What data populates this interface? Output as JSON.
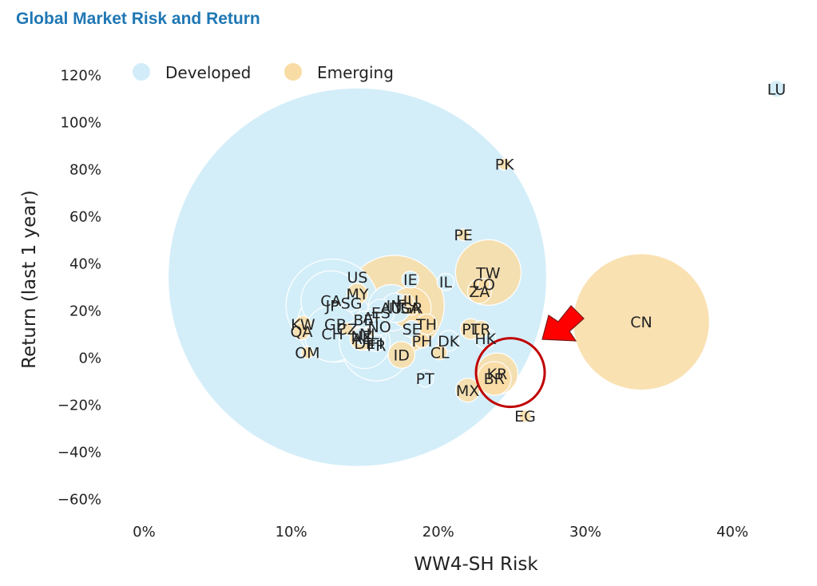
{
  "title": "Global Market Risk and Return",
  "colors": {
    "title": "#1f77b4",
    "developed": "#d2edf9",
    "emerging": "#f9dca4",
    "highlight": "#c00000",
    "arrow": "#ff0000"
  },
  "chart_data": {
    "type": "scatter",
    "title": "Global Market Risk and Return",
    "xlabel": "WW4-SH Risk",
    "ylabel": "Return (last 1 year)",
    "xlim": [
      -0.035,
      0.445
    ],
    "ylim": [
      -0.68,
      1.28
    ],
    "xticks": [
      0,
      0.1,
      0.2,
      0.3,
      0.4
    ],
    "xtick_labels": [
      "0%",
      "10%",
      "20%",
      "30%",
      "40%"
    ],
    "yticks": [
      1.2,
      1.0,
      0.8,
      0.6,
      0.4,
      0.2,
      0,
      -0.2,
      -0.4,
      -0.6
    ],
    "ytick_labels": [
      "120%",
      "100%",
      "80%",
      "60%",
      "40%",
      "20%",
      "0%",
      "−20%",
      "−40%",
      "−60%"
    ],
    "grid": false,
    "legend": {
      "position": "top-left",
      "entries": [
        "Developed",
        "Emerging"
      ]
    },
    "series": [
      {
        "name": "Developed",
        "points": [
          {
            "label": "US",
            "x": 0.145,
            "y": 0.34,
            "size": 100
          },
          {
            "label": "JP",
            "x": 0.128,
            "y": 0.22,
            "size": 6
          },
          {
            "label": "CA",
            "x": 0.127,
            "y": 0.24,
            "size": 2.5
          },
          {
            "label": "GB",
            "x": 0.13,
            "y": 0.14,
            "size": 4
          },
          {
            "label": "CH",
            "x": 0.128,
            "y": 0.1,
            "size": 2.2
          },
          {
            "label": "FR",
            "x": 0.158,
            "y": 0.05,
            "size": 3.5
          },
          {
            "label": "DE",
            "x": 0.15,
            "y": 0.06,
            "size": 1.8
          },
          {
            "label": "NL",
            "x": 0.153,
            "y": 0.1,
            "size": 0.8
          },
          {
            "label": "ES",
            "x": 0.161,
            "y": 0.19,
            "size": 0.5
          },
          {
            "label": "DK",
            "x": 0.207,
            "y": 0.07,
            "size": 0.3
          },
          {
            "label": "HK",
            "x": 0.232,
            "y": 0.08,
            "size": 0.3
          },
          {
            "label": "SG",
            "x": 0.141,
            "y": 0.23,
            "size": 0.2
          },
          {
            "label": "IE",
            "x": 0.181,
            "y": 0.33,
            "size": 0.2
          },
          {
            "label": "IL",
            "x": 0.205,
            "y": 0.32,
            "size": 0.2
          },
          {
            "label": "AT",
            "x": 0.155,
            "y": 0.17,
            "size": 0.2
          },
          {
            "label": "BE",
            "x": 0.149,
            "y": 0.16,
            "size": 0.2
          },
          {
            "label": "FI",
            "x": 0.158,
            "y": 0.06,
            "size": 0.2
          },
          {
            "label": "IT",
            "x": 0.171,
            "y": 0.21,
            "size": 0.6
          },
          {
            "label": "PT",
            "x": 0.191,
            "y": -0.09,
            "size": 0.2
          },
          {
            "label": "NZ",
            "x": 0.148,
            "y": 0.09,
            "size": 0.2
          },
          {
            "label": "NO",
            "x": 0.16,
            "y": 0.13,
            "size": 0.2
          },
          {
            "label": "SE",
            "x": 0.182,
            "y": 0.12,
            "size": 0.2
          },
          {
            "label": "AU",
            "x": 0.168,
            "y": 0.21,
            "size": 1.5
          },
          {
            "label": "LU",
            "x": 0.43,
            "y": 1.14,
            "size": 0.2
          }
        ]
      },
      {
        "name": "Emerging",
        "points": [
          {
            "label": "CN",
            "x": 0.338,
            "y": 0.15,
            "size": 13
          },
          {
            "label": "IN",
            "x": 0.17,
            "y": 0.22,
            "size": 7
          },
          {
            "label": "TW",
            "x": 0.234,
            "y": 0.36,
            "size": 3
          },
          {
            "label": "KR",
            "x": 0.24,
            "y": -0.07,
            "size": 1.2
          },
          {
            "label": "BR",
            "x": 0.238,
            "y": -0.09,
            "size": 0.8
          },
          {
            "label": "ZA",
            "x": 0.228,
            "y": 0.28,
            "size": 0.4
          },
          {
            "label": "SA",
            "x": 0.181,
            "y": 0.21,
            "size": 1.2
          },
          {
            "label": "MX",
            "x": 0.22,
            "y": -0.14,
            "size": 0.4
          },
          {
            "label": "ID",
            "x": 0.175,
            "y": 0.01,
            "size": 0.5
          },
          {
            "label": "TH",
            "x": 0.192,
            "y": 0.14,
            "size": 0.3
          },
          {
            "label": "MY",
            "x": 0.145,
            "y": 0.27,
            "size": 0.3
          },
          {
            "label": "PH",
            "x": 0.189,
            "y": 0.07,
            "size": 0.15
          },
          {
            "label": "CL",
            "x": 0.201,
            "y": 0.02,
            "size": 0.15
          },
          {
            "label": "CO",
            "x": 0.231,
            "y": 0.31,
            "size": 0.1
          },
          {
            "label": "PE",
            "x": 0.217,
            "y": 0.52,
            "size": 0.1
          },
          {
            "label": "TR",
            "x": 0.229,
            "y": 0.12,
            "size": 0.2
          },
          {
            "label": "PL",
            "x": 0.222,
            "y": 0.12,
            "size": 0.3
          },
          {
            "label": "HU",
            "x": 0.179,
            "y": 0.24,
            "size": 0.1
          },
          {
            "label": "CZ",
            "x": 0.138,
            "y": 0.12,
            "size": 0.1
          },
          {
            "label": "GR",
            "x": 0.182,
            "y": 0.21,
            "size": 0.15
          },
          {
            "label": "KW",
            "x": 0.108,
            "y": 0.14,
            "size": 0.2
          },
          {
            "label": "QA",
            "x": 0.107,
            "y": 0.11,
            "size": 0.2
          },
          {
            "label": "AE",
            "x": 0.148,
            "y": 0.08,
            "size": 0.4
          },
          {
            "label": "OM",
            "x": 0.111,
            "y": 0.02,
            "size": 0.1
          },
          {
            "label": "EG",
            "x": 0.259,
            "y": -0.25,
            "size": 0.1
          },
          {
            "label": "PK",
            "x": 0.245,
            "y": 0.82,
            "size": 0.1
          }
        ]
      }
    ],
    "annotations": [
      {
        "type": "circle",
        "x": 0.249,
        "y": -0.065,
        "color": "#c00000"
      },
      {
        "type": "arrow",
        "pointing": "down-left",
        "color": "#ff0000"
      }
    ]
  }
}
